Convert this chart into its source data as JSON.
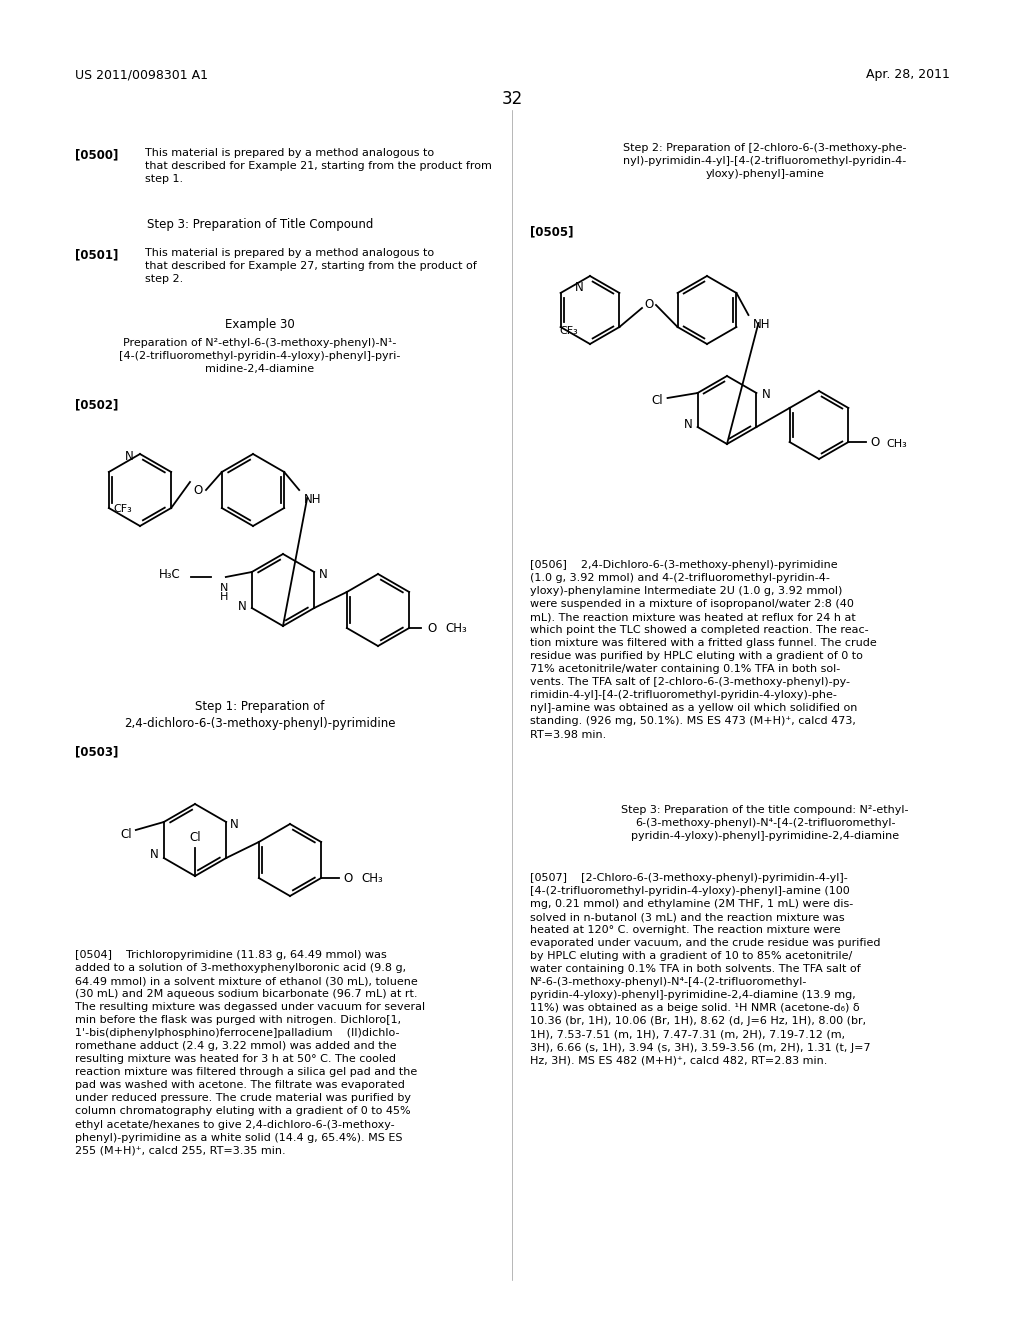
{
  "background_color": "#ffffff",
  "header_left": "US 2011/0098301 A1",
  "header_right": "Apr. 28, 2011",
  "page_number": "32"
}
